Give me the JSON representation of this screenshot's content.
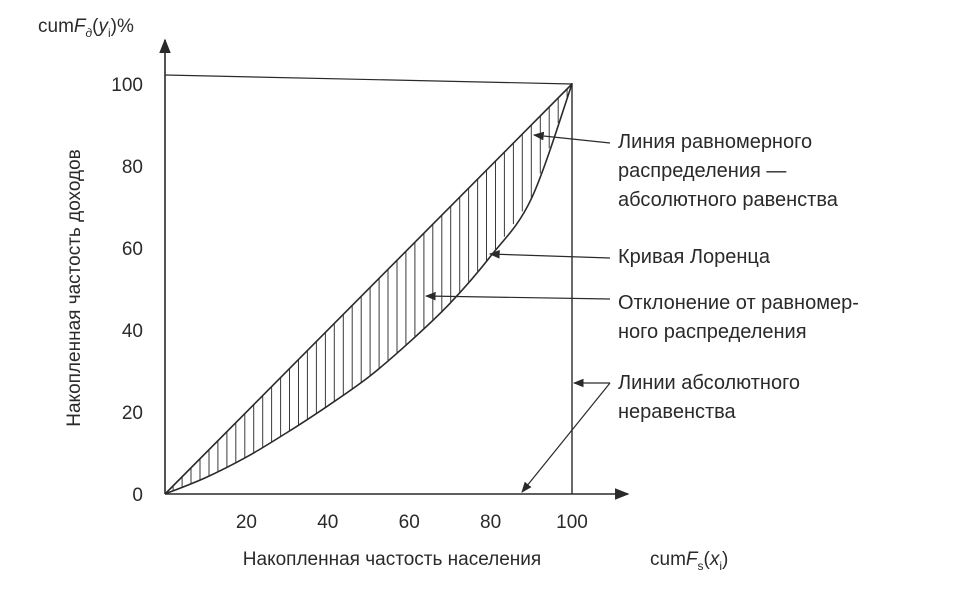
{
  "chart_data": {
    "type": "line",
    "y_axis_title": {
      "base": "cum",
      "italic": "F",
      "subscript": "д",
      "arg_open": "(",
      "arg_var": "y",
      "arg_sub": "i",
      "arg_close": ")",
      "suffix": "%"
    },
    "x_axis_title": {
      "base": "cum",
      "italic": "F",
      "subscript": "s",
      "arg_open": "(",
      "arg_var": "x",
      "arg_sub": "i",
      "arg_close": ")"
    },
    "ylabel": "Накопленная частость доходов",
    "xlabel": "Накопленная частость населения",
    "xlim": [
      0,
      100
    ],
    "ylim": [
      0,
      100
    ],
    "x_ticks": [
      "20",
      "40",
      "60",
      "80",
      "100"
    ],
    "y_ticks": [
      "0",
      "20",
      "40",
      "60",
      "80",
      "100"
    ],
    "series": [
      {
        "role": "equality",
        "x": [
          0,
          100
        ],
        "y": [
          0,
          100
        ]
      },
      {
        "role": "lorenz",
        "x": [
          0,
          10,
          20,
          30,
          40,
          50,
          60,
          70,
          80,
          90,
          100
        ],
        "y": [
          0,
          4,
          9,
          15,
          21.5,
          28.5,
          37,
          46.5,
          58,
          72,
          100
        ]
      }
    ],
    "annotations": {
      "equality_line": [
        "Линия равномерного",
        "распределения —",
        "абсолютного равенства"
      ],
      "lorenz_curve": [
        "Кривая Лоренца"
      ],
      "deviation": [
        "Отклонение от равномер-",
        "ного распределения"
      ],
      "absolute_inequality": [
        "Линии абсолютного",
        "неравенства"
      ]
    },
    "hatched_area": true,
    "grid": false
  }
}
